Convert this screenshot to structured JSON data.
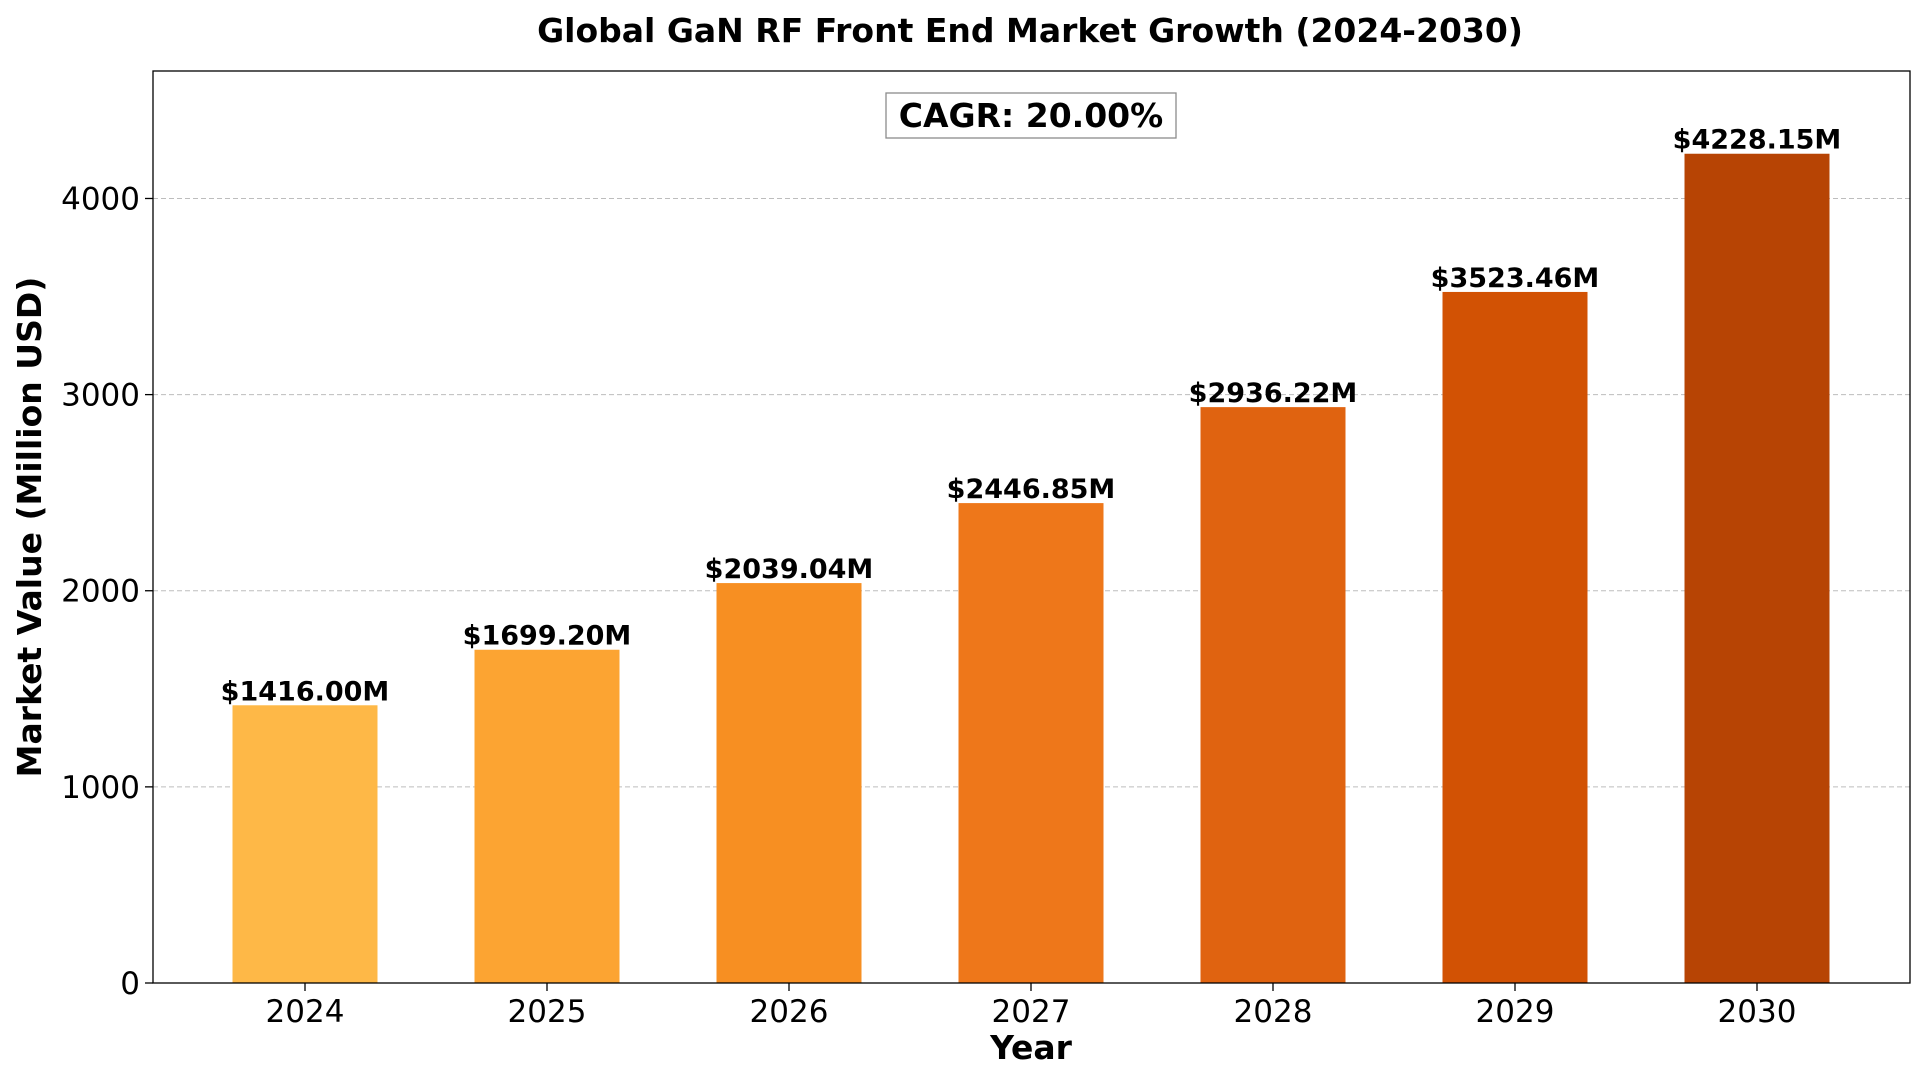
{
  "chart_data": {
    "type": "bar",
    "title": "Global GaN RF Front End Market Growth (2024-2030)",
    "xlabel": "Year",
    "ylabel": "Market Value (Million USD)",
    "categories": [
      "2024",
      "2025",
      "2026",
      "2027",
      "2028",
      "2029",
      "2030"
    ],
    "values": [
      1416.0,
      1699.2,
      2039.04,
      2446.85,
      2936.22,
      3523.46,
      4228.15
    ],
    "data_labels": [
      "$1416.00M",
      "$1699.20M",
      "$2039.04M",
      "$2446.85M",
      "$2936.22M",
      "$3523.46M",
      "$4228.15M"
    ],
    "colors": [
      "#FEB847",
      "#FCA432",
      "#F78F22",
      "#EE771A",
      "#E06310",
      "#D25204",
      "#B74404"
    ],
    "ylim": [
      0,
      4650
    ],
    "yticks": [
      0,
      1000,
      2000,
      3000,
      4000
    ],
    "ytick_labels": [
      "0",
      "1000",
      "2000",
      "3000",
      "4000"
    ],
    "grid": true,
    "annotation": "CAGR: 20.00%"
  }
}
